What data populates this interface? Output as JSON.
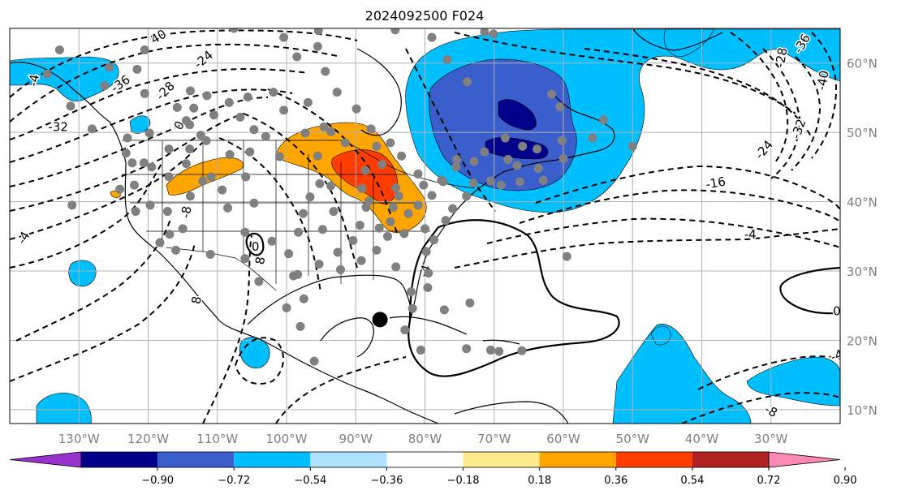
{
  "title": "2024092500 F024",
  "map": {
    "lon_range": [
      -140,
      -20
    ],
    "lat_range": [
      8,
      65
    ],
    "lon_ticks": [
      {
        "value": -130,
        "label": "130°W"
      },
      {
        "value": -120,
        "label": "120°W"
      },
      {
        "value": -110,
        "label": "110°W"
      },
      {
        "value": -100,
        "label": "100°W"
      },
      {
        "value": -90,
        "label": "90°W"
      },
      {
        "value": -80,
        "label": "80°W"
      },
      {
        "value": -70,
        "label": "70°W"
      },
      {
        "value": -60,
        "label": "60°W"
      },
      {
        "value": -50,
        "label": "50°W"
      },
      {
        "value": -40,
        "label": "40°W"
      },
      {
        "value": -30,
        "label": "30°W"
      }
    ],
    "lat_ticks": [
      {
        "value": 60,
        "label": "60°N"
      },
      {
        "value": 50,
        "label": "50°N"
      },
      {
        "value": 40,
        "label": "40°N"
      },
      {
        "value": 30,
        "label": "30°N"
      },
      {
        "value": 20,
        "label": "20°N"
      },
      {
        "value": 10,
        "label": "10°N"
      }
    ],
    "grid": true,
    "colorbar": {
      "colors": [
        "#9932cc",
        "#00008b",
        "#3a5fcd",
        "#00bfff",
        "#aee2ff",
        "#ffffff",
        "#ffe98a",
        "#ffa500",
        "#ff3d00",
        "#b22222",
        "#ff88b5"
      ],
      "ticks": [
        {
          "value": -0.9,
          "label": "−0.90"
        },
        {
          "value": -0.72,
          "label": "−0.72"
        },
        {
          "value": -0.54,
          "label": "−0.54"
        },
        {
          "value": -0.36,
          "label": "−0.36"
        },
        {
          "value": -0.18,
          "label": "−0.18"
        },
        {
          "value": 0.18,
          "label": "0.18"
        },
        {
          "value": 0.36,
          "label": "0.36"
        },
        {
          "value": 0.54,
          "label": "0.54"
        },
        {
          "value": 0.72,
          "label": "0.72"
        },
        {
          "value": 0.9,
          "label": "0.90"
        }
      ]
    },
    "contour_labels": [
      {
        "text": "40",
        "lon": -118.5,
        "lat": 63.8,
        "rot": -30
      },
      {
        "text": "-24",
        "lon": -112,
        "lat": 60.5,
        "rot": -40
      },
      {
        "text": "-36",
        "lon": -124,
        "lat": 57.0,
        "rot": -35
      },
      {
        "text": "-28",
        "lon": -117.5,
        "lat": 56.0,
        "rot": -45
      },
      {
        "text": "0",
        "lon": -115.5,
        "lat": 51.0,
        "rot": -60
      },
      {
        "text": "-32",
        "lon": -133,
        "lat": 50.8,
        "rot": 0
      },
      {
        "text": "-4",
        "lon": -136.5,
        "lat": 57.5,
        "rot": -80
      },
      {
        "text": "-4",
        "lon": -138,
        "lat": 34.8,
        "rot": -60
      },
      {
        "text": "-8",
        "lon": -114.5,
        "lat": 38.5,
        "rot": -80
      },
      {
        "text": "8",
        "lon": -113,
        "lat": 25.8,
        "rot": -80
      },
      {
        "text": "8",
        "lon": -103.8,
        "lat": 31.5,
        "rot": -80
      },
      {
        "text": "0",
        "lon": -104.5,
        "lat": 33.5,
        "rot": 0
      },
      {
        "text": "-28",
        "lon": -28.5,
        "lat": 60.8,
        "rot": -80
      },
      {
        "text": "-36",
        "lon": -25.5,
        "lat": 62.8,
        "rot": -60
      },
      {
        "text": "-40",
        "lon": -22.5,
        "lat": 57.5,
        "rot": -80
      },
      {
        "text": "-32",
        "lon": -26,
        "lat": 50.5,
        "rot": -70
      },
      {
        "text": "-24",
        "lon": -31,
        "lat": 47.5,
        "rot": -50
      },
      {
        "text": "-16",
        "lon": -38,
        "lat": 42.7,
        "rot": -10
      },
      {
        "text": "-4",
        "lon": -33,
        "lat": 35.3,
        "rot": 0
      },
      {
        "text": "0",
        "lon": -20.5,
        "lat": 24.2,
        "rot": 0
      },
      {
        "text": "-4",
        "lon": -20.5,
        "lat": 17.8,
        "rot": -20
      },
      {
        "text": "-8",
        "lon": -30,
        "lat": 9.8,
        "rot": 30
      },
      {
        "text": "-4",
        "lon": -80,
        "lat": 30.0,
        "rot": -70
      }
    ],
    "marker": {
      "lon": -86.5,
      "lat": 23.0
    },
    "station_dots": [
      [
        -132.8,
        61.9
      ],
      [
        -120.5,
        61.9
      ],
      [
        -125.6,
        59.4
      ],
      [
        -107.6,
        65.0
      ],
      [
        -100.4,
        63.7
      ],
      [
        -95.4,
        64.7
      ],
      [
        -84.3,
        64.8
      ],
      [
        -71.4,
        64.5
      ],
      [
        -98.5,
        60.9
      ],
      [
        -95.5,
        62.4
      ],
      [
        -94.4,
        58.8
      ],
      [
        -79.0,
        63.7
      ],
      [
        -76.8,
        60.5
      ],
      [
        -73.9,
        57.3
      ],
      [
        -70.1,
        64.2
      ],
      [
        -121.6,
        59.1
      ],
      [
        -120.5,
        55.6
      ],
      [
        -126.3,
        56.7
      ],
      [
        -111.5,
        55.3
      ],
      [
        -113.4,
        53.5
      ],
      [
        -110.5,
        52.5
      ],
      [
        -114.0,
        51.1
      ],
      [
        -113.9,
        56.0
      ],
      [
        -114.5,
        51.7
      ],
      [
        -112.4,
        49.6
      ],
      [
        -106.7,
        52.2
      ],
      [
        -104.7,
        50.4
      ],
      [
        -105.6,
        55.1
      ],
      [
        -101.9,
        55.8
      ],
      [
        -97.3,
        49.9
      ],
      [
        -94.6,
        50.8
      ],
      [
        -89.9,
        53.4
      ],
      [
        -93.6,
        50.1
      ],
      [
        -87.0,
        48.0
      ],
      [
        -92.7,
        55.8
      ],
      [
        -100.4,
        53.2
      ],
      [
        -96.9,
        54.3
      ],
      [
        -103.0,
        49.4
      ],
      [
        -108.3,
        54.3
      ],
      [
        -119.8,
        49.9
      ],
      [
        -115.8,
        53.6
      ],
      [
        -123.0,
        49.2
      ],
      [
        -123.2,
        47.0
      ],
      [
        -122.3,
        45.6
      ],
      [
        -122.0,
        42.4
      ],
      [
        -124.1,
        41.8
      ],
      [
        -121.8,
        38.6
      ],
      [
        -118.3,
        34.1
      ],
      [
        -116.9,
        35.3
      ],
      [
        -115.0,
        36.1
      ],
      [
        -117.2,
        38.6
      ],
      [
        -119.7,
        39.5
      ],
      [
        -120.6,
        45.6
      ],
      [
        -117.0,
        43.6
      ],
      [
        -113.9,
        40.8
      ],
      [
        -112.1,
        43.0
      ],
      [
        -110.9,
        43.6
      ],
      [
        -109.3,
        41.7
      ],
      [
        -105.9,
        43.6
      ],
      [
        -104.7,
        39.8
      ],
      [
        -108.5,
        39.1
      ],
      [
        -106.0,
        35.6
      ],
      [
        -102.1,
        34.3
      ],
      [
        -99.7,
        32.5
      ],
      [
        -98.3,
        35.6
      ],
      [
        -95.3,
        31.0
      ],
      [
        -97.5,
        26.0
      ],
      [
        -100.0,
        24.7
      ],
      [
        -99.0,
        29.3
      ],
      [
        -97.6,
        38.3
      ],
      [
        -95.2,
        42.6
      ],
      [
        -93.6,
        42.3
      ],
      [
        -96.6,
        40.7
      ],
      [
        -94.8,
        36.0
      ],
      [
        -92.6,
        32.7
      ],
      [
        -90.4,
        34.4
      ],
      [
        -89.2,
        31.5
      ],
      [
        -92.2,
        30.2
      ],
      [
        -93.2,
        38.6
      ],
      [
        -88.5,
        39.2
      ],
      [
        -89.1,
        41.9
      ],
      [
        -89.4,
        36.6
      ],
      [
        -87.0,
        33.0
      ],
      [
        -84.2,
        30.6
      ],
      [
        -82.0,
        27.0
      ],
      [
        -81.8,
        24.6
      ],
      [
        -79.8,
        32.8
      ],
      [
        -78.7,
        34.5
      ],
      [
        -77.0,
        37.3
      ],
      [
        -76.0,
        39.0
      ],
      [
        -74.0,
        40.8
      ],
      [
        -73.0,
        42.7
      ],
      [
        -75.4,
        46.1
      ],
      [
        -71.4,
        47.2
      ],
      [
        -68.4,
        49.2
      ],
      [
        -65.9,
        48.0
      ],
      [
        -63.6,
        44.8
      ],
      [
        -60.0,
        46.2
      ],
      [
        -62.9,
        43.1
      ],
      [
        -70.5,
        43.0
      ],
      [
        -66.3,
        42.9
      ],
      [
        -54.2,
        51.8
      ],
      [
        -50.0,
        48.0
      ],
      [
        -60.5,
        53.7
      ],
      [
        -61.7,
        55.5
      ],
      [
        -66.7,
        45.2
      ],
      [
        -68.0,
        46.1
      ],
      [
        -63.8,
        47.6
      ],
      [
        -60.2,
        48.8
      ],
      [
        -55.8,
        49.2
      ],
      [
        -72.9,
        45.8
      ],
      [
        -69.0,
        42.4
      ],
      [
        -77.6,
        43.1
      ],
      [
        -81.0,
        44.0
      ],
      [
        -80.2,
        42.4
      ],
      [
        -84.2,
        42.0
      ],
      [
        -86.2,
        45.4
      ],
      [
        -83.4,
        46.6
      ],
      [
        -88.6,
        44.5
      ],
      [
        -88.1,
        40.1
      ],
      [
        -83.8,
        40.8
      ],
      [
        -82.4,
        38.3
      ],
      [
        -85.0,
        37.1
      ],
      [
        -86.6,
        36.2
      ],
      [
        -84.6,
        39.2
      ],
      [
        -85.4,
        35.0
      ],
      [
        -83.0,
        35.4
      ],
      [
        -80.0,
        36.1
      ],
      [
        -81.0,
        39.5
      ],
      [
        -79.0,
        40.9
      ],
      [
        -77.4,
        42.9
      ],
      [
        -75.5,
        45.0
      ],
      [
        -59.5,
        32.1
      ],
      [
        -82.9,
        21.5
      ],
      [
        -80.6,
        18.6
      ],
      [
        -74.0,
        18.8
      ],
      [
        -70.5,
        18.6
      ],
      [
        -69.3,
        18.4
      ],
      [
        -66.0,
        18.5
      ],
      [
        -77.2,
        24.4
      ],
      [
        -73.5,
        25.4
      ],
      [
        -79.6,
        27.6
      ],
      [
        -79.5,
        29.7
      ],
      [
        -96.0,
        17.0
      ],
      [
        -98.4,
        29.5
      ],
      [
        -85.0,
        48.5
      ],
      [
        -87.8,
        50.5
      ],
      [
        -91.5,
        48.5
      ],
      [
        -95.5,
        46.6
      ],
      [
        -101.0,
        46.5
      ],
      [
        -105.3,
        47.2
      ],
      [
        -108.2,
        46.8
      ],
      [
        -111.6,
        48.8
      ],
      [
        -114.0,
        47.6
      ],
      [
        -117.0,
        47.6
      ],
      [
        -119.5,
        45.0
      ],
      [
        -128.1,
        50.5
      ],
      [
        -131.2,
        53.8
      ],
      [
        -134.6,
        58.4
      ],
      [
        -140.5,
        60.0
      ],
      [
        -131.0,
        39.5
      ],
      [
        -116.0,
        33.0
      ],
      [
        -111.0,
        32.4
      ],
      [
        -106.0,
        31.8
      ],
      [
        -104.0,
        28.5
      ],
      [
        -98.0,
        22.0
      ],
      [
        -114.5,
        45.5
      ]
    ]
  }
}
